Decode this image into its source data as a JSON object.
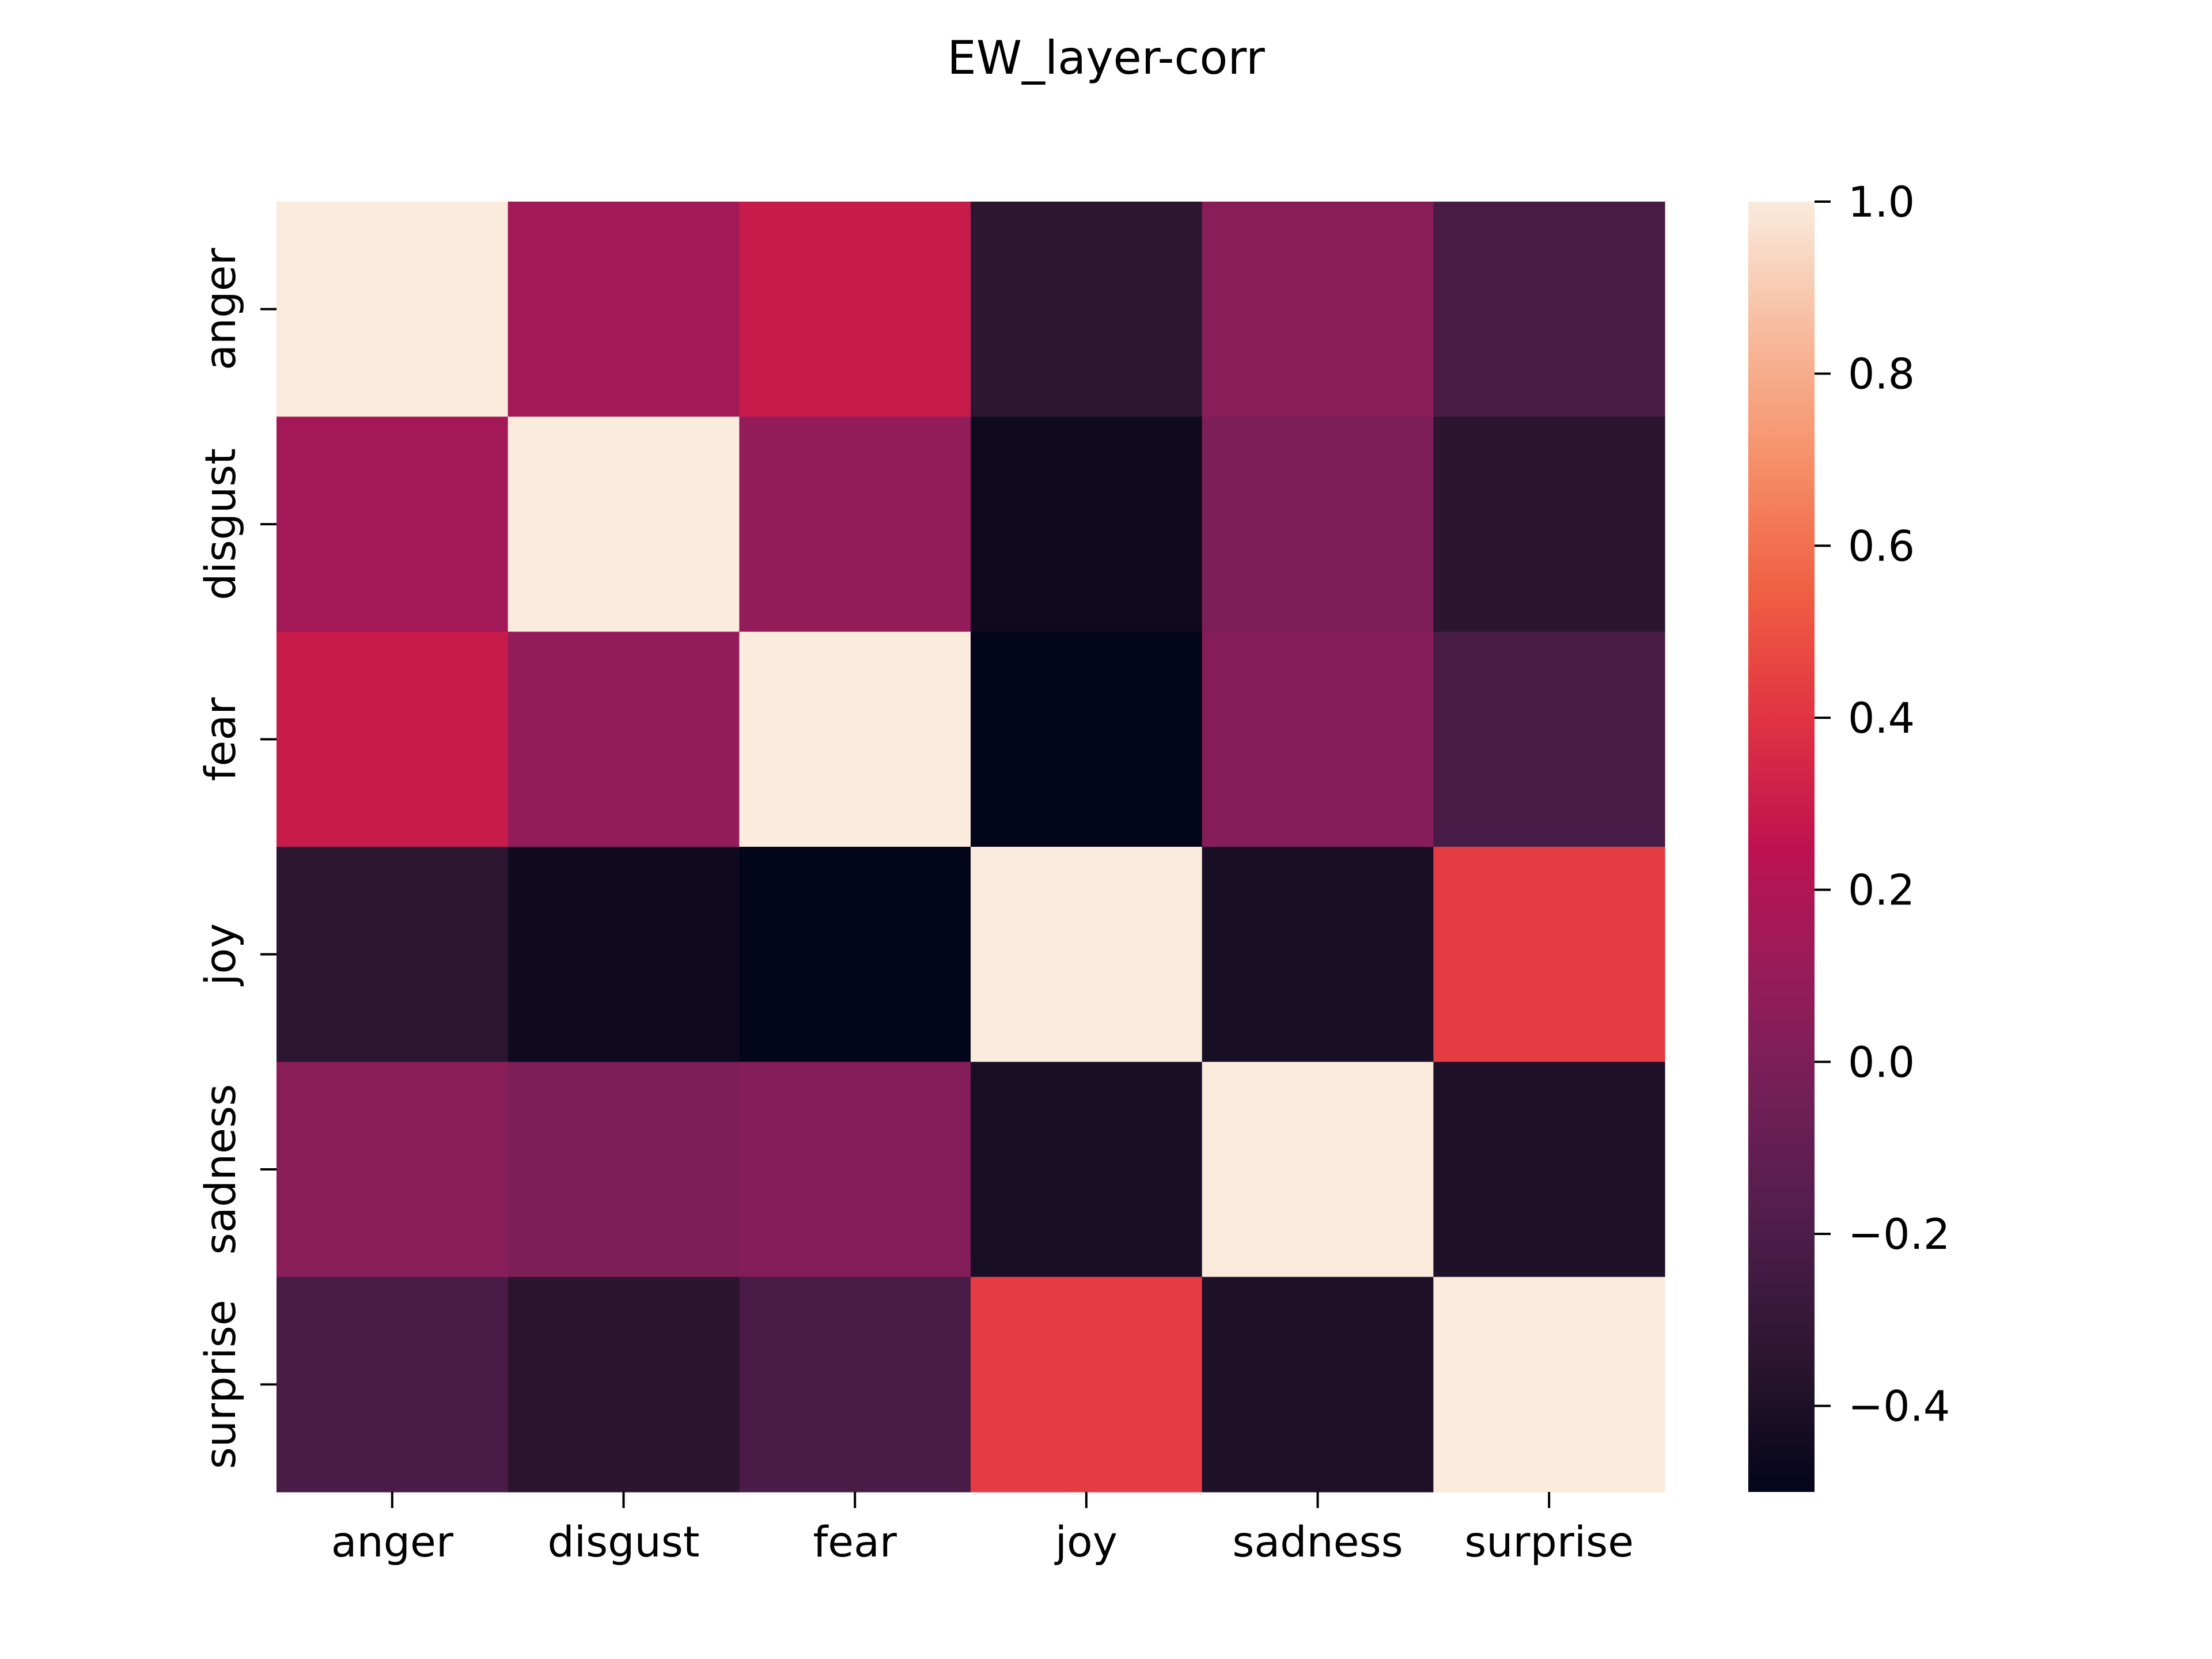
{
  "chart_data": {
    "type": "heatmap",
    "title": "EW_layer-corr",
    "xlabel": "",
    "ylabel": "",
    "x_categories": [
      "anger",
      "disgust",
      "fear",
      "joy",
      "sadness",
      "surprise"
    ],
    "y_categories": [
      "anger",
      "disgust",
      "fear",
      "joy",
      "sadness",
      "surprise"
    ],
    "values": [
      [
        1.0,
        0.15,
        0.29,
        -0.34,
        0.05,
        -0.22
      ],
      [
        0.15,
        1.0,
        0.09,
        -0.45,
        0.0,
        -0.35
      ],
      [
        0.29,
        0.09,
        1.0,
        -0.5,
        0.03,
        -0.22
      ],
      [
        -0.34,
        -0.45,
        -0.5,
        1.0,
        -0.42,
        0.43
      ],
      [
        0.05,
        0.0,
        0.03,
        -0.42,
        1.0,
        -0.4
      ],
      [
        -0.22,
        -0.35,
        -0.22,
        0.43,
        -0.4,
        1.0
      ]
    ],
    "colorbar": {
      "min": -0.5,
      "max": 1.0,
      "ticks": [
        1.0,
        0.8,
        0.6,
        0.4,
        0.2,
        0.0,
        -0.2,
        -0.4
      ],
      "tick_labels": [
        "1.0",
        "0.8",
        "0.6",
        "0.4",
        "0.2",
        "0.0",
        "−0.2",
        "−0.4"
      ],
      "colormap": "rocket",
      "colormap_stops": [
        "#03051a",
        "#2b1530",
        "#4c1d4b",
        "#701f57",
        "#961c5b",
        "#be1250",
        "#e13342",
        "#f06043",
        "#f6906a",
        "#f7bb9d",
        "#faebdd"
      ]
    }
  }
}
